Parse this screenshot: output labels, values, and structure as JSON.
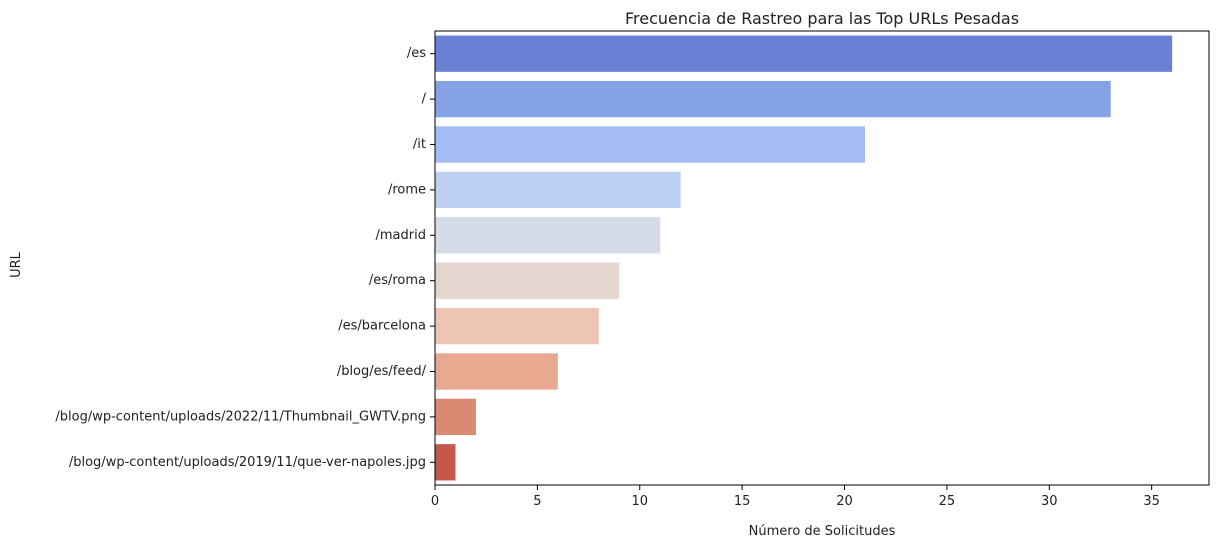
{
  "chart_data": {
    "type": "bar",
    "orientation": "horizontal",
    "title": "Frecuencia de Rastreo para las Top URLs Pesadas",
    "xlabel": "Número de Solicitudes",
    "ylabel": "URL",
    "xlim": [
      0,
      37.8
    ],
    "xticks": [
      "0",
      "5",
      "10",
      "15",
      "20",
      "25",
      "30",
      "35"
    ],
    "grid": false,
    "categories": [
      "/es",
      "/",
      "/it",
      "/rome",
      "/madrid",
      "/es/roma",
      "/es/barcelona",
      "/blog/es/feed/",
      "/blog/wp-content/uploads/2022/11/Thumbnail_GWTV.png",
      "/blog/wp-content/uploads/2019/11/que-ver-napoles.jpg"
    ],
    "values": [
      36,
      33,
      21,
      12,
      11,
      9,
      8,
      6,
      2,
      1
    ],
    "colors": [
      "#6a80d5",
      "#86a2e6",
      "#a3bcf4",
      "#bdd0f2",
      "#d5dbe7",
      "#e5d7cf",
      "#edc5b2",
      "#e7a98f",
      "#da8a72",
      "#c6574c"
    ]
  }
}
